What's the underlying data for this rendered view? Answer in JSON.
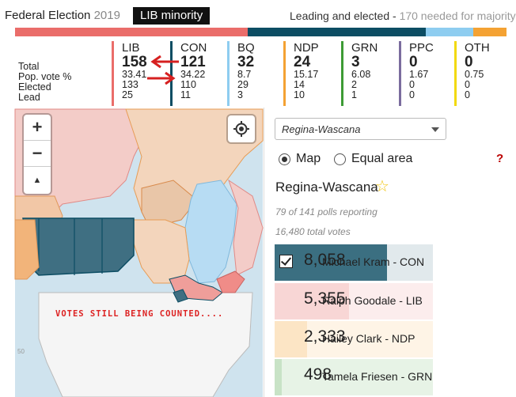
{
  "header": {
    "app_title": "Federal Election",
    "year": "2019",
    "badge": "LIB minority",
    "leading_label": "Leading and elected -",
    "needed_text": "170 needed for majority"
  },
  "row_labels": [
    "Total",
    "Pop. vote %",
    "Elected",
    "Lead"
  ],
  "parties": [
    {
      "name": "LIB",
      "total": "158",
      "pop_vote": "33.41",
      "elected": "133",
      "lead": "25",
      "color": "#ea6d6a"
    },
    {
      "name": "CON",
      "total": "121",
      "pop_vote": "34.22",
      "elected": "110",
      "lead": "11",
      "color": "#0c4d63"
    },
    {
      "name": "BQ",
      "total": "32",
      "pop_vote": "8.7",
      "elected": "29",
      "lead": "3",
      "color": "#8ecdf0"
    },
    {
      "name": "NDP",
      "total": "24",
      "pop_vote": "15.17",
      "elected": "14",
      "lead": "10",
      "color": "#f4a233"
    },
    {
      "name": "GRN",
      "total": "3",
      "pop_vote": "6.08",
      "elected": "2",
      "lead": "1",
      "color": "#3d9b35"
    },
    {
      "name": "PPC",
      "total": "0",
      "pop_vote": "1.67",
      "elected": "0",
      "lead": "0",
      "color": "#7b6c9e"
    },
    {
      "name": "OTH",
      "total": "0",
      "pop_vote": "0.75",
      "elected": "0",
      "lead": "0",
      "color": "#f2d90d"
    }
  ],
  "seat_bar": [
    {
      "party": "LIB",
      "seats": 158,
      "color": "#ea6d6a"
    },
    {
      "party": "CON",
      "seats": 121,
      "color": "#0c4d63"
    },
    {
      "party": "BQ",
      "seats": 32,
      "color": "#8ecdf0"
    },
    {
      "party": "NDP",
      "seats": 24,
      "color": "#f4a233"
    }
  ],
  "map": {
    "zoom_in": "+",
    "zoom_out": "−",
    "north_arrow": "N",
    "overlay_text": "VOTES STILL BEING COUNTED....",
    "lat_label": "50"
  },
  "panel": {
    "riding_select": "Regina-Wascana",
    "view_options": [
      {
        "label": "Map",
        "selected": true
      },
      {
        "label": "Equal area",
        "selected": false
      }
    ],
    "help": "?",
    "riding_name": "Regina-Wascana",
    "polls_reporting": "79 of 141 polls reporting",
    "total_votes": "16,480 total votes",
    "candidates": [
      {
        "votes": "8,058",
        "name": "Michael Kram - CON",
        "share": 0.489,
        "color": "#0c4d63",
        "elected": true
      },
      {
        "votes": "5,355",
        "name": "Ralph Goodale - LIB",
        "share": 0.325,
        "color": "#ea6d6a",
        "elected": false
      },
      {
        "votes": "2,333",
        "name": "Hailey Clark - NDP",
        "share": 0.142,
        "color": "#f4a233",
        "elected": false
      },
      {
        "votes": "498",
        "name": "Tamela Friesen - GRN",
        "share": 0.03,
        "color": "#3d9b35",
        "elected": false
      }
    ]
  }
}
